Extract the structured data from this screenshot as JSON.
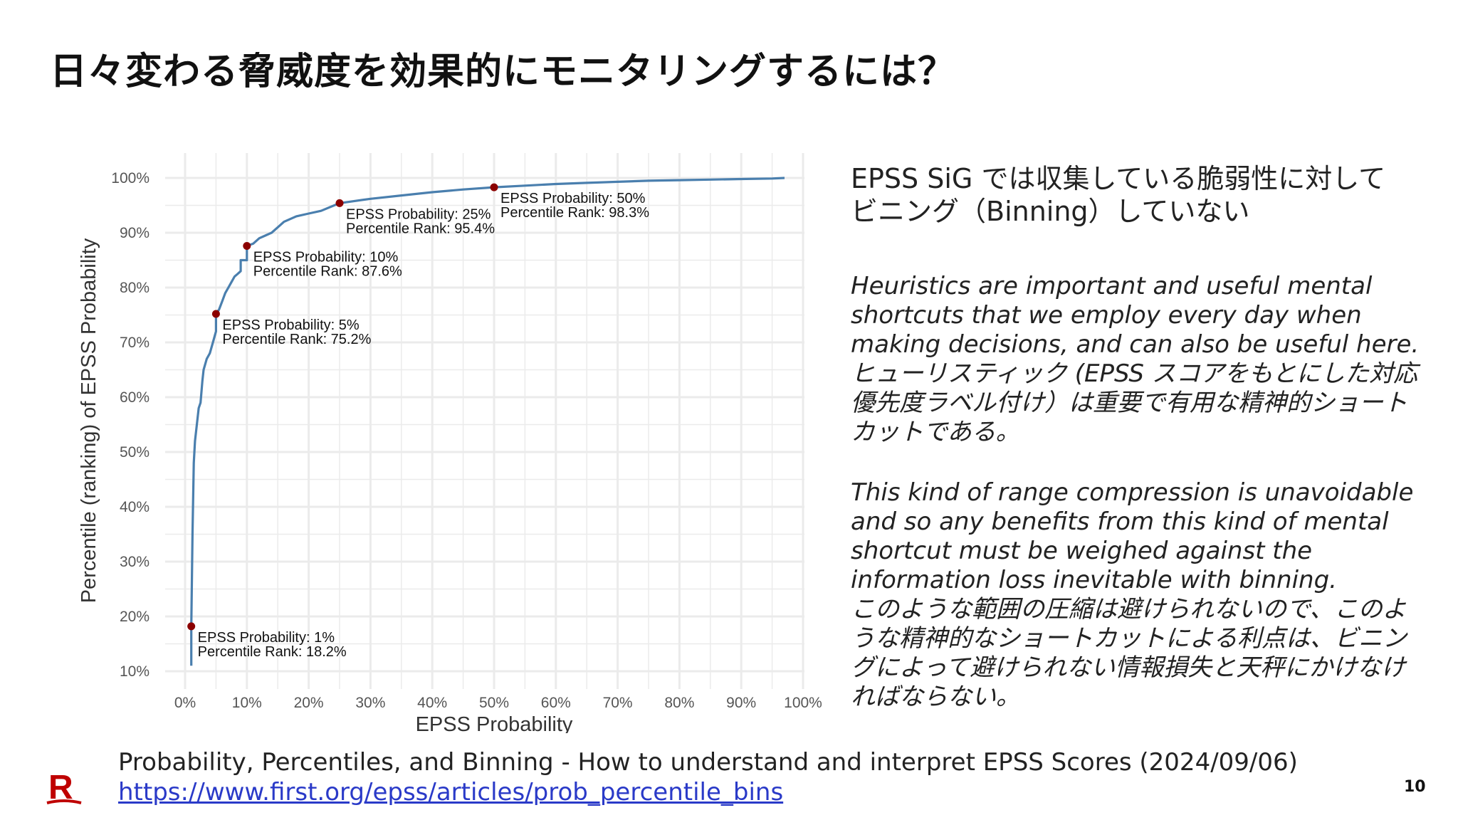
{
  "slide": {
    "title": "日々変わる脅威度を効果的にモニタリングするには？",
    "page_number": "10"
  },
  "right_panel": {
    "heading_lines": [
      "EPSS SiG では収集している脆弱性に対して",
      "ビニング（Binning）していない"
    ],
    "paragraph1_lines": [
      "Heuristics are important and useful mental",
      "shortcuts that we employ every day when",
      "making decisions, and can also be useful here.",
      "ヒューリスティック (EPSS スコアをもとにした対応",
      "優先度ラベル付け）は重要で有用な精神的ショート",
      "カットである。"
    ],
    "paragraph2_lines": [
      "This kind of range compression is unavoidable",
      "and so any benefits from this kind of mental",
      "shortcut must be weighed against the",
      "information loss inevitable with binning.",
      "このような範囲の圧縮は避けられないので、このよ",
      "うな精神的なショートカットによる利点は、ビニン",
      "グによって避けられない情報損失と天秤にかけなけ",
      "ればならない。"
    ]
  },
  "source": {
    "text": "Probability, Percentiles, and Binning - How to understand and interpret EPSS Scores (2024/09/06)",
    "url": "https://www.first.org/epss/articles/prob_percentile_bins"
  },
  "logo": {
    "letter": "R",
    "color": "#bf0000"
  },
  "colors": {
    "line": "#4a7fae",
    "marker": "#8b0000",
    "grid": "#ebebeb",
    "link": "#2a3ac8"
  },
  "chart_data": {
    "type": "line",
    "xlabel": "EPSS Probability",
    "ylabel": "Percentile (ranking) of EPSS Probability",
    "xlim": [
      0,
      1
    ],
    "ylim": [
      0.1,
      1.0
    ],
    "grid": true,
    "x_ticks": [
      0,
      0.1,
      0.2,
      0.3,
      0.4,
      0.5,
      0.6,
      0.7,
      0.8,
      0.9,
      1.0
    ],
    "x_tick_labels": [
      "0%",
      "10%",
      "20%",
      "30%",
      "40%",
      "50%",
      "60%",
      "70%",
      "80%",
      "90%",
      "100%"
    ],
    "y_ticks": [
      0.1,
      0.2,
      0.3,
      0.4,
      0.5,
      0.6,
      0.7,
      0.8,
      0.9,
      1.0
    ],
    "y_tick_labels": [
      "10%",
      "20%",
      "30%",
      "40%",
      "50%",
      "60%",
      "70%",
      "80%",
      "90%",
      "100%"
    ],
    "series": [
      {
        "x": [
          0.01,
          0.01,
          0.012,
          0.014,
          0.016,
          0.019,
          0.022,
          0.025,
          0.028,
          0.03,
          0.035,
          0.04,
          0.045,
          0.05,
          0.05,
          0.055,
          0.06,
          0.065,
          0.07,
          0.075,
          0.08,
          0.085,
          0.09,
          0.09,
          0.1,
          0.1,
          0.105,
          0.11,
          0.12,
          0.13,
          0.14,
          0.15,
          0.16,
          0.18,
          0.2,
          0.22,
          0.25,
          0.3,
          0.35,
          0.4,
          0.45,
          0.5,
          0.55,
          0.6,
          0.65,
          0.7,
          0.75,
          0.8,
          0.85,
          0.9,
          0.95,
          0.97
        ],
        "y": [
          0.11,
          0.182,
          0.35,
          0.48,
          0.52,
          0.55,
          0.58,
          0.59,
          0.63,
          0.65,
          0.67,
          0.68,
          0.7,
          0.72,
          0.752,
          0.76,
          0.775,
          0.79,
          0.8,
          0.81,
          0.82,
          0.825,
          0.83,
          0.85,
          0.85,
          0.876,
          0.878,
          0.88,
          0.89,
          0.895,
          0.9,
          0.91,
          0.92,
          0.93,
          0.935,
          0.94,
          0.954,
          0.962,
          0.968,
          0.974,
          0.979,
          0.983,
          0.986,
          0.989,
          0.991,
          0.993,
          0.995,
          0.996,
          0.997,
          0.998,
          0.999,
          1.0
        ]
      }
    ],
    "highlight_points": [
      {
        "x": 0.01,
        "y": 0.182,
        "label1": "EPSS Probability: 1%",
        "label2": "Percentile Rank: 18.2%"
      },
      {
        "x": 0.05,
        "y": 0.752,
        "label1": "EPSS Probability: 5%",
        "label2": "Percentile Rank: 75.2%"
      },
      {
        "x": 0.1,
        "y": 0.876,
        "label1": "EPSS Probability: 10%",
        "label2": "Percentile Rank: 87.6%"
      },
      {
        "x": 0.25,
        "y": 0.954,
        "label1": "EPSS Probability: 25%",
        "label2": "Percentile Rank: 95.4%"
      },
      {
        "x": 0.5,
        "y": 0.983,
        "label1": "EPSS Probability: 50%",
        "label2": "Percentile Rank: 98.3%"
      }
    ]
  }
}
